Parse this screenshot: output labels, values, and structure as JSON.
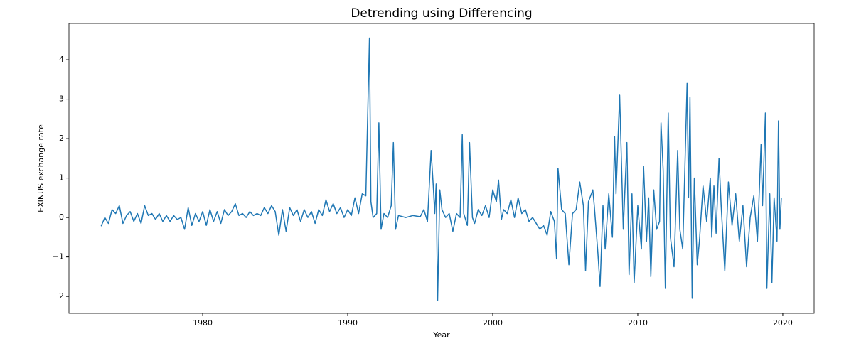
{
  "chart_data": {
    "type": "line",
    "title": "Detrending using Differencing",
    "xlabel": "Year",
    "ylabel": "EXINUS exchange rate",
    "x": [
      1973.0,
      1973.25,
      1973.5,
      1973.75,
      1974.0,
      1974.25,
      1974.5,
      1974.75,
      1975.0,
      1975.25,
      1975.5,
      1975.75,
      1976.0,
      1976.25,
      1976.5,
      1976.75,
      1977.0,
      1977.25,
      1977.5,
      1977.75,
      1978.0,
      1978.25,
      1978.5,
      1978.75,
      1979.0,
      1979.25,
      1979.5,
      1979.75,
      1980.0,
      1980.25,
      1980.5,
      1980.75,
      1981.0,
      1981.25,
      1981.5,
      1981.75,
      1982.0,
      1982.25,
      1982.5,
      1982.75,
      1983.0,
      1983.25,
      1983.5,
      1983.75,
      1984.0,
      1984.25,
      1984.5,
      1984.75,
      1985.0,
      1985.25,
      1985.5,
      1985.75,
      1986.0,
      1986.25,
      1986.5,
      1986.75,
      1987.0,
      1987.25,
      1987.5,
      1987.75,
      1988.0,
      1988.25,
      1988.5,
      1988.75,
      1989.0,
      1989.25,
      1989.5,
      1989.75,
      1990.0,
      1990.25,
      1990.5,
      1990.75,
      1991.0,
      1991.25,
      1991.5,
      1991.6,
      1991.75,
      1992.0,
      1992.15,
      1992.3,
      1992.5,
      1992.75,
      1993.0,
      1993.15,
      1993.3,
      1993.5,
      1994.0,
      1994.5,
      1995.0,
      1995.25,
      1995.5,
      1995.75,
      1995.9,
      1996.0,
      1996.1,
      1996.2,
      1996.35,
      1996.5,
      1996.75,
      1997.0,
      1997.25,
      1997.5,
      1997.75,
      1997.9,
      1998.0,
      1998.25,
      1998.4,
      1998.6,
      1998.75,
      1999.0,
      1999.25,
      1999.5,
      1999.75,
      2000.0,
      2000.25,
      2000.4,
      2000.6,
      2000.75,
      2001.0,
      2001.25,
      2001.5,
      2001.75,
      2002.0,
      2002.25,
      2002.5,
      2002.75,
      2003.0,
      2003.25,
      2003.5,
      2003.75,
      2004.0,
      2004.25,
      2004.4,
      2004.5,
      2004.75,
      2005.0,
      2005.25,
      2005.5,
      2005.75,
      2006.0,
      2006.25,
      2006.4,
      2006.6,
      2006.9,
      2007.0,
      2007.25,
      2007.4,
      2007.6,
      2007.75,
      2008.0,
      2008.25,
      2008.4,
      2008.5,
      2008.75,
      2009.0,
      2009.25,
      2009.4,
      2009.6,
      2009.75,
      2010.0,
      2010.25,
      2010.4,
      2010.6,
      2010.75,
      2010.9,
      2011.1,
      2011.3,
      2011.5,
      2011.6,
      2011.75,
      2011.9,
      2012.1,
      2012.25,
      2012.5,
      2012.75,
      2012.9,
      2013.1,
      2013.4,
      2013.5,
      2013.6,
      2013.75,
      2013.9,
      2014.1,
      2014.25,
      2014.5,
      2014.75,
      2015.0,
      2015.1,
      2015.25,
      2015.4,
      2015.6,
      2015.75,
      2016.0,
      2016.25,
      2016.5,
      2016.75,
      2017.0,
      2017.25,
      2017.5,
      2017.75,
      2018.0,
      2018.25,
      2018.5,
      2018.6,
      2018.8,
      2018.9,
      2019.1,
      2019.25,
      2019.4,
      2019.6,
      2019.7,
      2019.8,
      2019.9
    ],
    "series": [
      {
        "color": "#1f77b4",
        "values": [
          -0.22,
          0.0,
          -0.15,
          0.2,
          0.1,
          0.3,
          -0.15,
          0.05,
          0.15,
          -0.1,
          0.1,
          -0.15,
          0.3,
          0.05,
          0.1,
          -0.05,
          0.1,
          -0.1,
          0.05,
          -0.1,
          0.05,
          -0.05,
          0.0,
          -0.3,
          0.25,
          -0.2,
          0.1,
          -0.1,
          0.15,
          -0.2,
          0.2,
          -0.1,
          0.15,
          -0.15,
          0.2,
          0.05,
          0.15,
          0.35,
          0.05,
          0.1,
          0.0,
          0.15,
          0.05,
          0.1,
          0.05,
          0.25,
          0.1,
          0.3,
          0.15,
          -0.45,
          0.2,
          -0.35,
          0.25,
          0.05,
          0.2,
          -0.1,
          0.2,
          0.0,
          0.15,
          -0.15,
          0.2,
          0.05,
          0.45,
          0.15,
          0.35,
          0.1,
          0.25,
          0.0,
          0.2,
          0.05,
          0.5,
          0.1,
          0.6,
          0.55,
          4.55,
          0.4,
          0.0,
          0.1,
          2.4,
          -0.3,
          0.1,
          0.0,
          0.3,
          1.9,
          -0.3,
          0.05,
          0.0,
          0.05,
          0.02,
          0.2,
          -0.1,
          1.7,
          0.8,
          0.1,
          0.85,
          -2.1,
          0.7,
          0.2,
          0.0,
          0.1,
          -0.35,
          0.1,
          0.0,
          2.1,
          0.1,
          -0.2,
          1.9,
          0.0,
          -0.15,
          0.2,
          0.05,
          0.3,
          0.0,
          0.7,
          0.4,
          0.95,
          -0.05,
          0.2,
          0.1,
          0.45,
          0.0,
          0.5,
          0.1,
          0.2,
          -0.1,
          0.0,
          -0.15,
          -0.3,
          -0.2,
          -0.45,
          0.15,
          -0.1,
          -1.05,
          1.25,
          0.2,
          0.1,
          -1.2,
          0.1,
          0.2,
          0.9,
          0.3,
          -1.35,
          0.4,
          0.7,
          0.3,
          -0.9,
          -1.75,
          0.3,
          -0.8,
          0.6,
          -0.5,
          2.05,
          0.6,
          3.1,
          -0.3,
          1.9,
          -1.45,
          0.6,
          -1.65,
          0.3,
          -0.8,
          1.3,
          -0.6,
          0.5,
          -1.5,
          0.7,
          -0.3,
          -0.1,
          2.4,
          1.2,
          -1.8,
          2.65,
          -0.5,
          -1.25,
          1.7,
          -0.3,
          -0.8,
          3.4,
          0.5,
          3.05,
          -2.05,
          1.0,
          -1.2,
          -0.6,
          0.8,
          -0.1,
          1.0,
          -0.5,
          0.8,
          -0.4,
          1.5,
          0.3,
          -1.35,
          0.9,
          -0.2,
          0.6,
          -0.6,
          0.3,
          -1.25,
          0.0,
          0.55,
          -0.6,
          1.85,
          0.3,
          2.65,
          -1.8,
          0.6,
          -1.65,
          0.5,
          -0.6,
          2.45,
          -0.3,
          0.5
        ]
      }
    ],
    "xlim": [
      1970.78,
      2022.16
    ],
    "xticks": [
      1980,
      1990,
      2000,
      2010,
      2020
    ],
    "ylim": [
      -2.43,
      4.92
    ],
    "yticks": [
      {
        "value": -2,
        "label": "−2"
      },
      {
        "value": -1,
        "label": "−1"
      },
      0,
      1,
      2,
      3,
      4
    ],
    "grid": false
  }
}
